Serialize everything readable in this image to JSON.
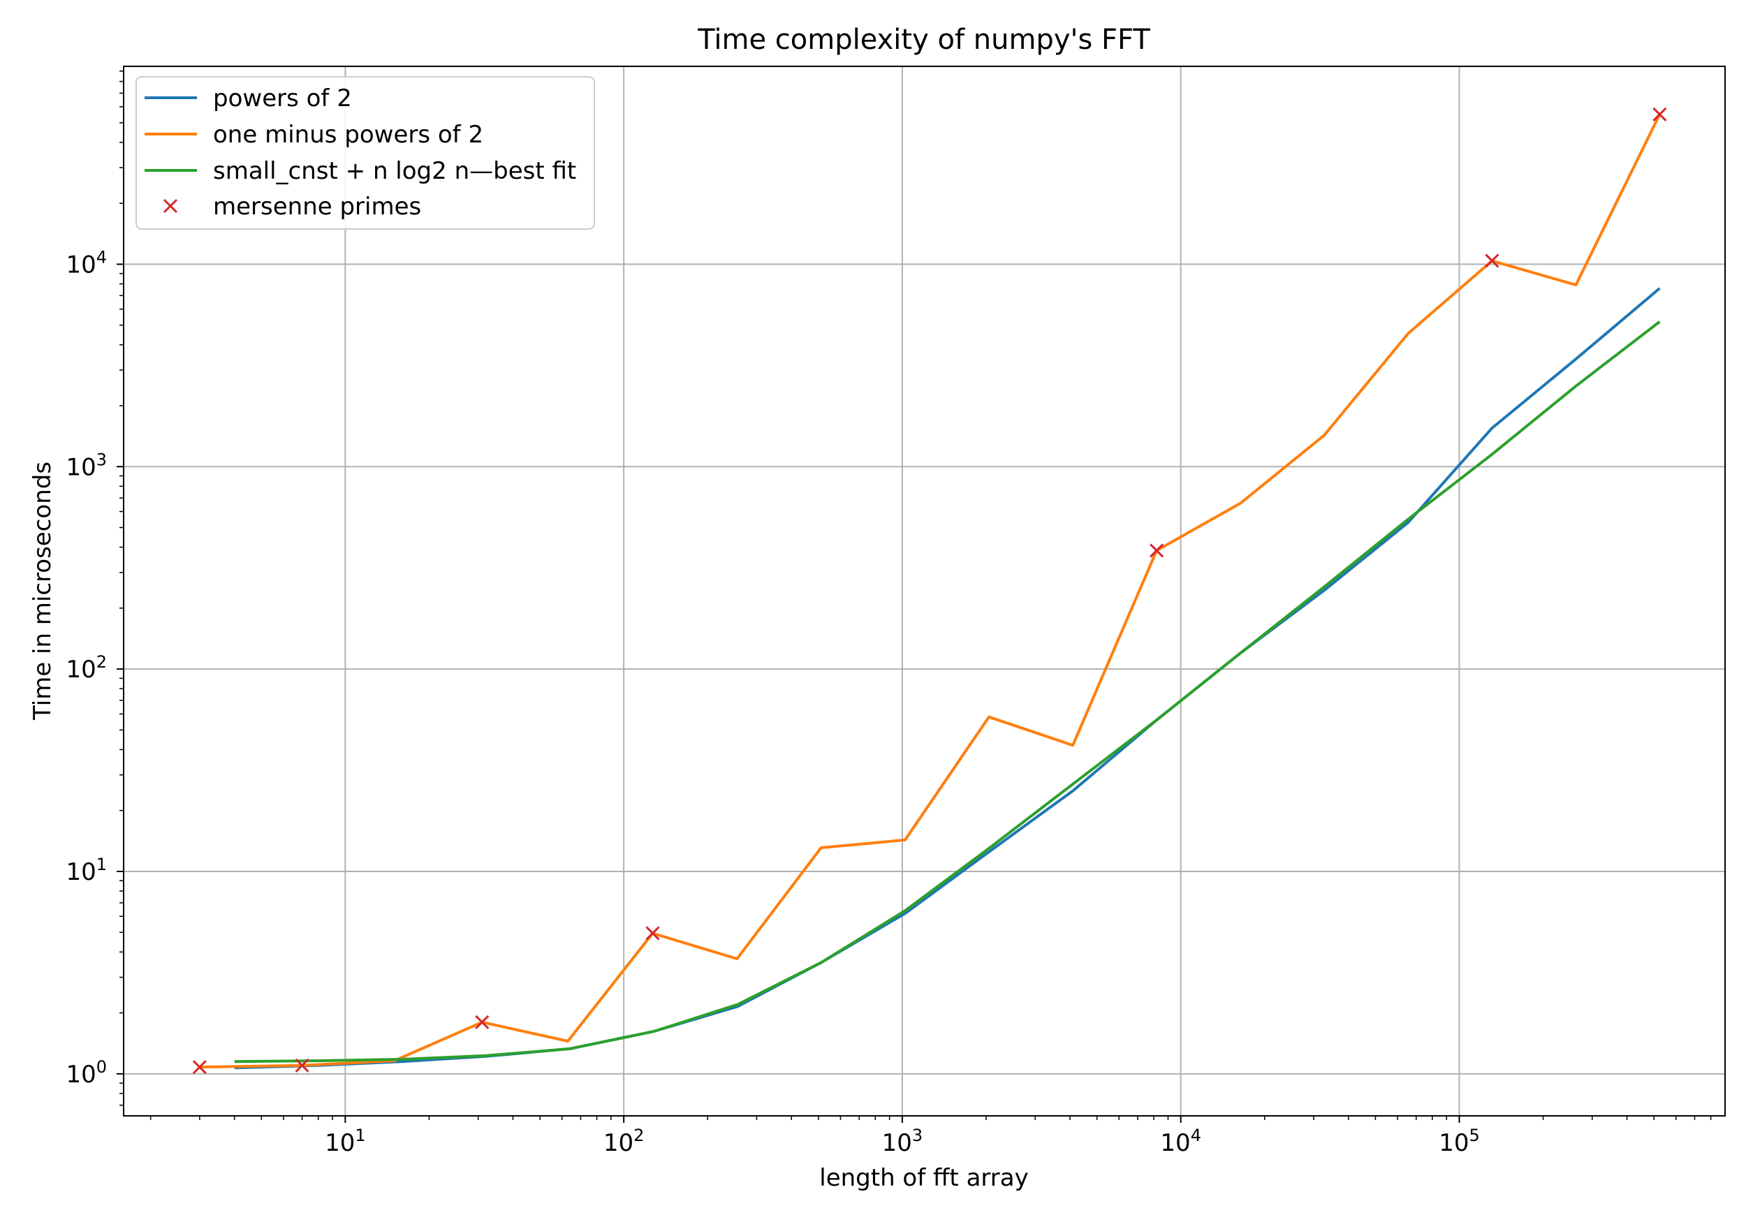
{
  "chart_data": {
    "type": "line",
    "title": "Time complexity of numpy's FFT",
    "xlabel": "length of fft array",
    "ylabel": "Time in microseconds",
    "xscale": "log",
    "yscale": "log",
    "xlim": [
      1.6,
      900000
    ],
    "ylim": [
      0.62,
      95000
    ],
    "grid": true,
    "legend_position": "upper left",
    "x_ticks": [
      {
        "base": "10",
        "exp": "1",
        "value": 10
      },
      {
        "base": "10",
        "exp": "2",
        "value": 100
      },
      {
        "base": "10",
        "exp": "3",
        "value": 1000
      },
      {
        "base": "10",
        "exp": "4",
        "value": 10000
      },
      {
        "base": "10",
        "exp": "5",
        "value": 100000
      }
    ],
    "y_ticks": [
      {
        "base": "10",
        "exp": "0",
        "value": 1
      },
      {
        "base": "10",
        "exp": "1",
        "value": 10
      },
      {
        "base": "10",
        "exp": "2",
        "value": 100
      },
      {
        "base": "10",
        "exp": "3",
        "value": 1000
      },
      {
        "base": "10",
        "exp": "4",
        "value": 10000
      }
    ],
    "series": [
      {
        "name": "powers of 2",
        "color": "#1f77b4",
        "style": "line",
        "x": [
          4,
          8,
          16,
          32,
          64,
          128,
          256,
          512,
          1024,
          2048,
          4096,
          8192,
          16384,
          32768,
          65536,
          131072,
          262144,
          524288
        ],
        "y": [
          1.07,
          1.1,
          1.15,
          1.22,
          1.33,
          1.62,
          2.15,
          3.55,
          6.2,
          12.5,
          25,
          56,
          120,
          245,
          530,
          1550,
          3400,
          7600
        ]
      },
      {
        "name": "one minus powers of 2",
        "color": "#ff7f0e",
        "style": "line",
        "x": [
          3,
          7,
          15,
          31,
          63,
          127,
          255,
          511,
          1023,
          2047,
          4095,
          8191,
          16383,
          32767,
          65535,
          131071,
          262143,
          524287
        ],
        "y": [
          1.08,
          1.1,
          1.16,
          1.8,
          1.45,
          4.95,
          3.7,
          13.1,
          14.3,
          58,
          42,
          385,
          660,
          1430,
          4550,
          10400,
          7900,
          55000
        ]
      },
      {
        "name": "small_cnst + n log2 n—best fit",
        "color": "#2ca02c",
        "style": "line",
        "x": [
          4,
          8,
          16,
          32,
          64,
          128,
          256,
          512,
          1024,
          2048,
          4096,
          8192,
          16384,
          32768,
          65536,
          131072,
          262144,
          524288
        ],
        "y": [
          1.15,
          1.16,
          1.18,
          1.23,
          1.33,
          1.62,
          2.2,
          3.55,
          6.4,
          13,
          27,
          56,
          120,
          255,
          550,
          1150,
          2500,
          5200
        ]
      },
      {
        "name": "mersenne primes",
        "color": "#d62728",
        "style": "marker-x",
        "x": [
          3,
          7,
          31,
          127,
          8191,
          131071,
          524287
        ],
        "y": [
          1.08,
          1.1,
          1.8,
          4.95,
          385,
          10400,
          55000
        ]
      }
    ]
  }
}
